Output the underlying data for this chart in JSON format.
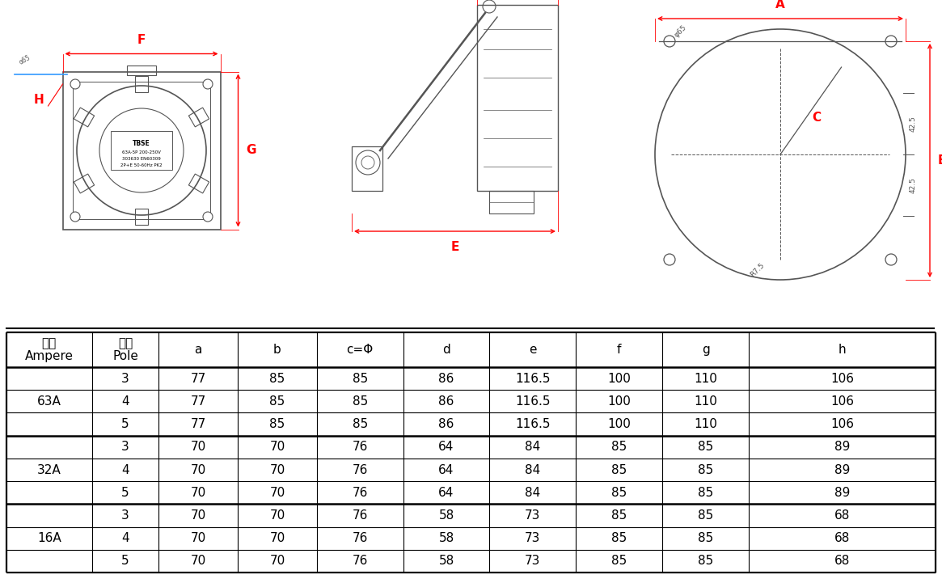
{
  "table_data": [
    [
      "63A",
      "3",
      "77",
      "85",
      "85",
      "86",
      "116.5",
      "100",
      "110",
      "106"
    ],
    [
      "63A",
      "4",
      "77",
      "85",
      "85",
      "86",
      "116.5",
      "100",
      "110",
      "106"
    ],
    [
      "63A",
      "5",
      "77",
      "85",
      "85",
      "86",
      "116.5",
      "100",
      "110",
      "106"
    ],
    [
      "32A",
      "3",
      "70",
      "70",
      "76",
      "64",
      "84",
      "85",
      "85",
      "89"
    ],
    [
      "32A",
      "4",
      "70",
      "70",
      "76",
      "64",
      "84",
      "85",
      "85",
      "89"
    ],
    [
      "32A",
      "5",
      "70",
      "70",
      "76",
      "64",
      "84",
      "85",
      "85",
      "89"
    ],
    [
      "16A",
      "3",
      "70",
      "70",
      "76",
      "58",
      "73",
      "85",
      "85",
      "68"
    ],
    [
      "16A",
      "4",
      "70",
      "70",
      "76",
      "58",
      "73",
      "85",
      "85",
      "68"
    ],
    [
      "16A",
      "5",
      "70",
      "70",
      "76",
      "58",
      "73",
      "85",
      "85",
      "68"
    ]
  ],
  "dim_color": "#FF0000",
  "line_color": "#555555",
  "bg_color": "#FFFFFF",
  "label_text": "TBSE\n63A-5P 200-250V\n303630 EN60309\n2P+E 50-60Hz PK2"
}
